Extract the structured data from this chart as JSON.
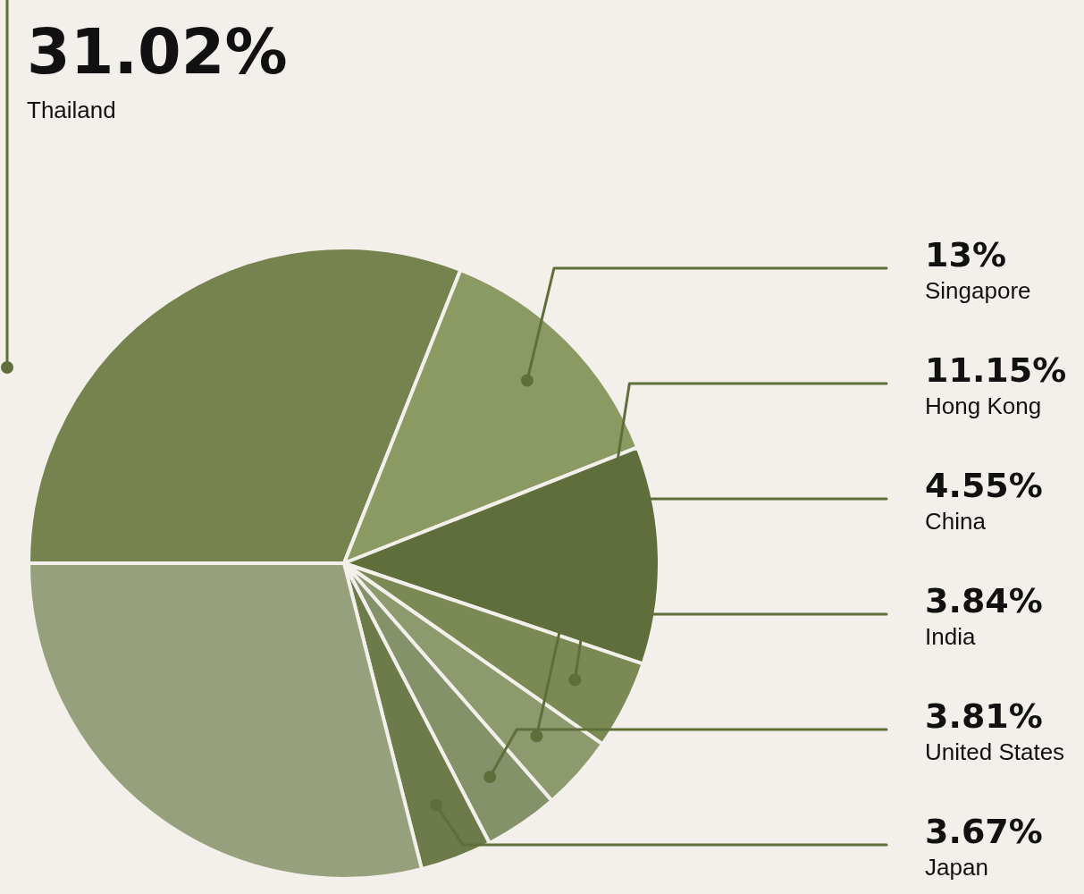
{
  "chart_data": {
    "type": "pie",
    "categories": [
      "Thailand",
      "Singapore",
      "Hong Kong",
      "China",
      "India",
      "United States",
      "Japan",
      null
    ],
    "values": [
      31.02,
      13,
      11.15,
      4.55,
      3.84,
      3.81,
      3.67,
      28.96
    ],
    "value_labels": [
      "31.02%",
      "13%",
      "11.15%",
      "4.55%",
      "3.84%",
      "3.81%",
      "3.67%",
      null
    ],
    "colors": [
      "#76834f",
      "#8b9a63",
      "#5f6e3a",
      "#7b8a55",
      "#8d9a6e",
      "#84926a",
      "#6d7b4a",
      "#97a07c"
    ],
    "legend": false
  }
}
